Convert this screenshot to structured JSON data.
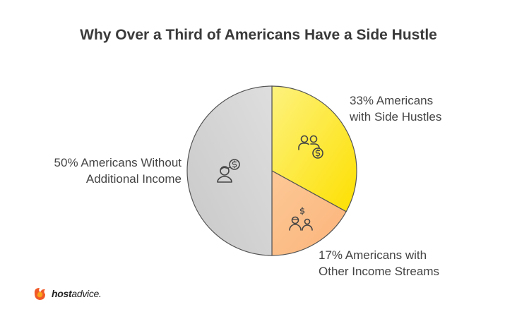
{
  "chart_data": {
    "type": "pie",
    "title": "Why Over a Third of Americans Have a Side Hustle",
    "slices": [
      {
        "value": 33,
        "label_lines": [
          "33% Americans",
          "with Side Hustles"
        ],
        "color": "#fde84a",
        "icon": "people-coin-icon"
      },
      {
        "value": 17,
        "label_lines": [
          "17% Americans with",
          "Other Income Streams"
        ],
        "color": "#fcc18e",
        "icon": "family-dollar-icon"
      },
      {
        "value": 50,
        "label_lines": [
          "50% Americans Without",
          "Additional Income"
        ],
        "color": "#d3d3d3",
        "icon": "person-dollar-icon"
      }
    ]
  },
  "brand": {
    "part1": "host",
    "part2": "advice."
  }
}
